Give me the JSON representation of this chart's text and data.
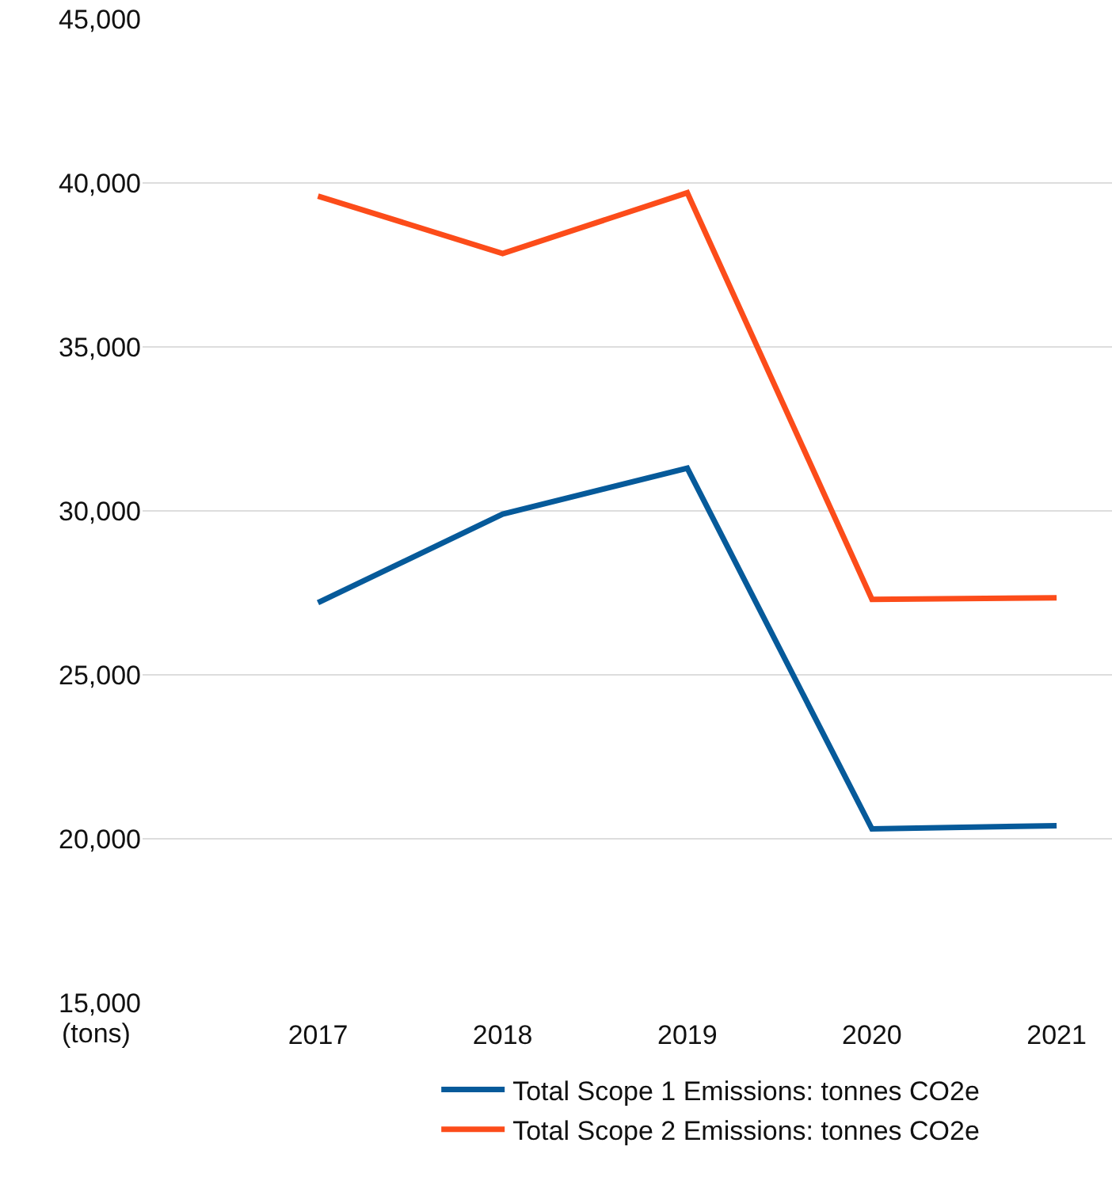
{
  "chart_data": {
    "type": "line",
    "ylabel": "(tons)",
    "categories": [
      "2017",
      "2018",
      "2019",
      "2020",
      "2021"
    ],
    "series": [
      {
        "name": "Total Scope 1 Emissions: tonnes CO2e",
        "color": "#065a9a",
        "values": [
          27200,
          29900,
          31300,
          20300,
          20400
        ]
      },
      {
        "name": "Total Scope 2 Emissions: tonnes CO2e",
        "color": "#fc4c1a",
        "values": [
          39600,
          37850,
          39700,
          27300,
          27350
        ]
      }
    ],
    "ylim": [
      15000,
      45000
    ],
    "yticks": [
      {
        "value": 15000,
        "label": "15,000"
      },
      {
        "value": 20000,
        "label": "20,000"
      },
      {
        "value": 25000,
        "label": "25,000"
      },
      {
        "value": 30000,
        "label": "30,000"
      },
      {
        "value": 35000,
        "label": "35,000"
      },
      {
        "value": 40000,
        "label": "40,000"
      },
      {
        "value": 45000,
        "label": "45,000"
      }
    ],
    "grid": "y",
    "legend": "bottom",
    "marker": "none",
    "line_style": "solid"
  }
}
